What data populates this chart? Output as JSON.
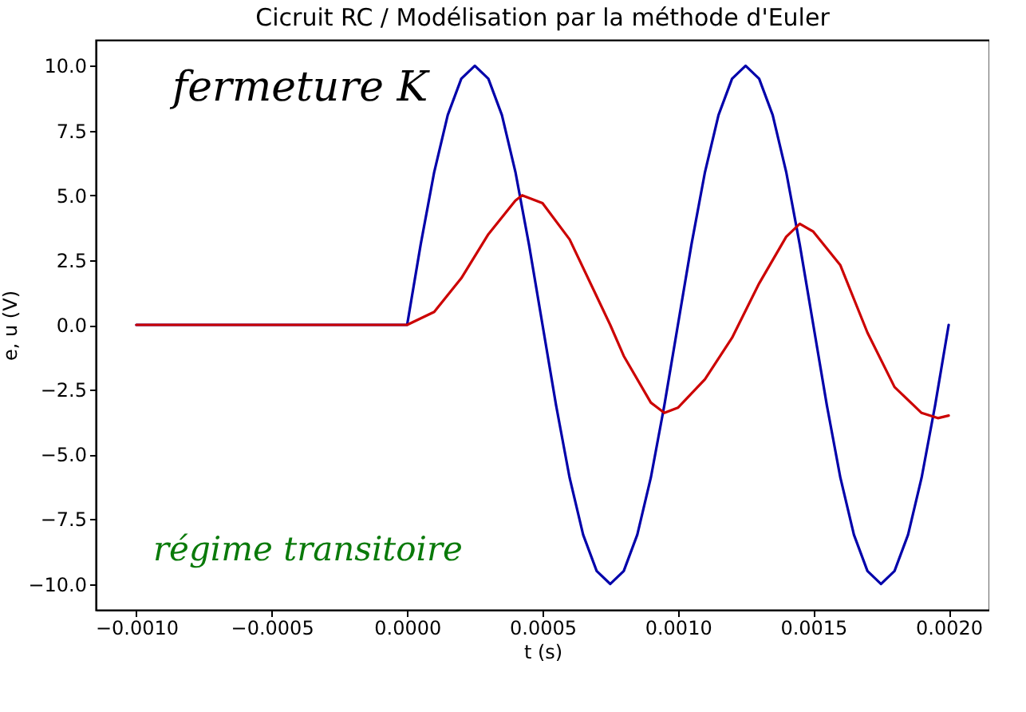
{
  "chart_data": {
    "type": "line",
    "title": "Cicruit RC / Modélisation par la méthode d'Euler",
    "xlabel": "t (s)",
    "ylabel": "e, u (V)",
    "xlim": [
      -0.00115,
      0.00215
    ],
    "ylim": [
      -11,
      11
    ],
    "xticks": [
      {
        "value": -0.001,
        "label": "−0.0010"
      },
      {
        "value": -0.0005,
        "label": "−0.0005"
      },
      {
        "value": 0,
        "label": "0.0000"
      },
      {
        "value": 0.0005,
        "label": "0.0005"
      },
      {
        "value": 0.001,
        "label": "0.0010"
      },
      {
        "value": 0.0015,
        "label": "0.0015"
      },
      {
        "value": 0.002,
        "label": "0.0020"
      }
    ],
    "yticks": [
      {
        "value": -10,
        "label": "−10.0"
      },
      {
        "value": -7.5,
        "label": "−7.5"
      },
      {
        "value": -5,
        "label": "−5.0"
      },
      {
        "value": -2.5,
        "label": "−2.5"
      },
      {
        "value": 0,
        "label": "0.0"
      },
      {
        "value": 2.5,
        "label": "2.5"
      },
      {
        "value": 5,
        "label": "5.0"
      },
      {
        "value": 7.5,
        "label": "7.5"
      },
      {
        "value": 10,
        "label": "10.0"
      }
    ],
    "series": [
      {
        "color": "#0000aa",
        "x": [
          -0.001,
          0,
          5e-05,
          0.0001,
          0.00015,
          0.0002,
          0.00025,
          0.0003,
          0.00035,
          0.0004,
          0.00045,
          0.0005,
          0.00055,
          0.0006,
          0.00065,
          0.0007,
          0.00075,
          0.0008,
          0.00085,
          0.0009,
          0.00095,
          0.001,
          0.00105,
          0.0011,
          0.00115,
          0.0012,
          0.00125,
          0.0013,
          0.00135,
          0.0014,
          0.00145,
          0.0015,
          0.00155,
          0.0016,
          0.00165,
          0.0017,
          0.00175,
          0.0018,
          0.00185,
          0.0019,
          0.00195,
          0.002
        ],
        "values": [
          0,
          0,
          3.1,
          5.9,
          8.1,
          9.5,
          10,
          9.5,
          8.1,
          5.9,
          3.1,
          0,
          -3.1,
          -5.9,
          -8.1,
          -9.5,
          -10,
          -9.5,
          -8.1,
          -5.9,
          -3.1,
          0,
          3.1,
          5.9,
          8.1,
          9.5,
          10,
          9.5,
          8.1,
          5.9,
          3.1,
          0,
          -3.1,
          -5.9,
          -8.1,
          -9.5,
          -10,
          -9.5,
          -8.1,
          -5.9,
          -3.1,
          0
        ]
      },
      {
        "color": "#cc0000",
        "x": [
          -0.001,
          0,
          0.0001,
          0.0002,
          0.0003,
          0.0004,
          0.000425,
          0.0005,
          0.0006,
          0.0007,
          0.00075,
          0.0008,
          0.0009,
          0.00095,
          0.001,
          0.0011,
          0.0012,
          0.0013,
          0.0014,
          0.00145,
          0.0015,
          0.0016,
          0.0017,
          0.0018,
          0.0019,
          0.00196,
          0.002
        ],
        "values": [
          0,
          0,
          0.5,
          1.8,
          3.5,
          4.8,
          5.0,
          4.7,
          3.3,
          1.1,
          0,
          -1.2,
          -3.0,
          -3.4,
          -3.2,
          -2.1,
          -0.5,
          1.6,
          3.4,
          3.9,
          3.6,
          2.3,
          -0.3,
          -2.4,
          -3.4,
          -3.6,
          -3.5
        ]
      }
    ],
    "grid": false,
    "line_style": "solid",
    "marker": "none",
    "annotations": [
      "fermeture K",
      "régime transitoire"
    ]
  }
}
